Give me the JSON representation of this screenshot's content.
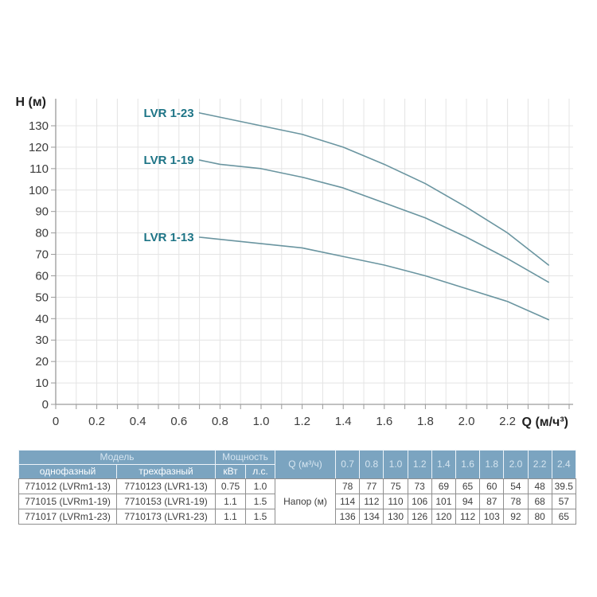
{
  "chart_data": {
    "type": "line",
    "title": "",
    "xlabel": "Q (м/ч³)",
    "ylabel": "H (м)",
    "x": [
      0.7,
      0.8,
      1.0,
      1.2,
      1.4,
      1.6,
      1.8,
      2.0,
      2.2,
      2.4
    ],
    "series": [
      {
        "name": "LVR 1-23",
        "values": [
          136,
          134,
          130,
          126,
          120,
          112,
          103,
          92,
          80,
          65
        ]
      },
      {
        "name": "LVR 1-19",
        "values": [
          114,
          112,
          110,
          106,
          101,
          94,
          87,
          78,
          68,
          57
        ]
      },
      {
        "name": "LVR 1-13",
        "values": [
          78,
          77,
          75,
          73,
          69,
          65,
          60,
          54,
          48,
          39.5
        ]
      }
    ],
    "xlim": [
      0,
      2.5
    ],
    "ylim": [
      0,
      142
    ],
    "x_tick_labels": [
      "0",
      "0.2",
      "0.4",
      "0.6",
      "0.8",
      "1.0",
      "1.2",
      "1.4",
      "1.6",
      "1.8",
      "2.0",
      "2.2"
    ],
    "y_tick_labels": [
      "0",
      "10",
      "20",
      "30",
      "40",
      "50",
      "60",
      "70",
      "80",
      "90",
      "100",
      "110",
      "120",
      "130"
    ],
    "grid": true,
    "legend_position": "inline-curve-labels",
    "colors": {
      "curve": "#6a95a0",
      "series_label": "#1d7486",
      "grid": "#e4e4e4",
      "axis": "#9a9a9a",
      "tick_text": "#3c3c3c",
      "axis_title_text": "#1f1f1f"
    }
  },
  "table": {
    "header": {
      "model_group": "Модель",
      "model_single": "однофазный",
      "model_three": "трехфазный",
      "power_group": "Мощность",
      "power_kw": "кВт",
      "power_hp": "л.с.",
      "q_label": "Q (м³/ч)",
      "q_values": [
        "0.7",
        "0.8",
        "1.0",
        "1.2",
        "1.4",
        "1.6",
        "1.8",
        "2.0",
        "2.2",
        "2.4"
      ]
    },
    "napor_label": "Напор (м)",
    "rows": [
      {
        "single": "771012 (LVRm1-13)",
        "three": "7710123 (LVR1-13)",
        "kw": "0.75",
        "hp": "1.0",
        "heads": [
          "78",
          "77",
          "75",
          "73",
          "69",
          "65",
          "60",
          "54",
          "48",
          "39.5"
        ]
      },
      {
        "single": "771015 (LVRm1-19)",
        "three": "7710153 (LVR1-19)",
        "kw": "1.1",
        "hp": "1.5",
        "heads": [
          "114",
          "112",
          "110",
          "106",
          "101",
          "94",
          "87",
          "78",
          "68",
          "57"
        ]
      },
      {
        "single": "771017 (LVRm1-23)",
        "three": "7710173 (LVR1-23)",
        "kw": "1.1",
        "hp": "1.5",
        "heads": [
          "136",
          "134",
          "130",
          "126",
          "120",
          "112",
          "103",
          "92",
          "80",
          "65"
        ]
      }
    ],
    "colors": {
      "header_bg": "#7ba4c0",
      "header_group_text": "#d6e5f0",
      "header_sub_text": "#fdfeff",
      "body_text": "#3d3d3d",
      "body_border": "#8f8f8f"
    }
  }
}
